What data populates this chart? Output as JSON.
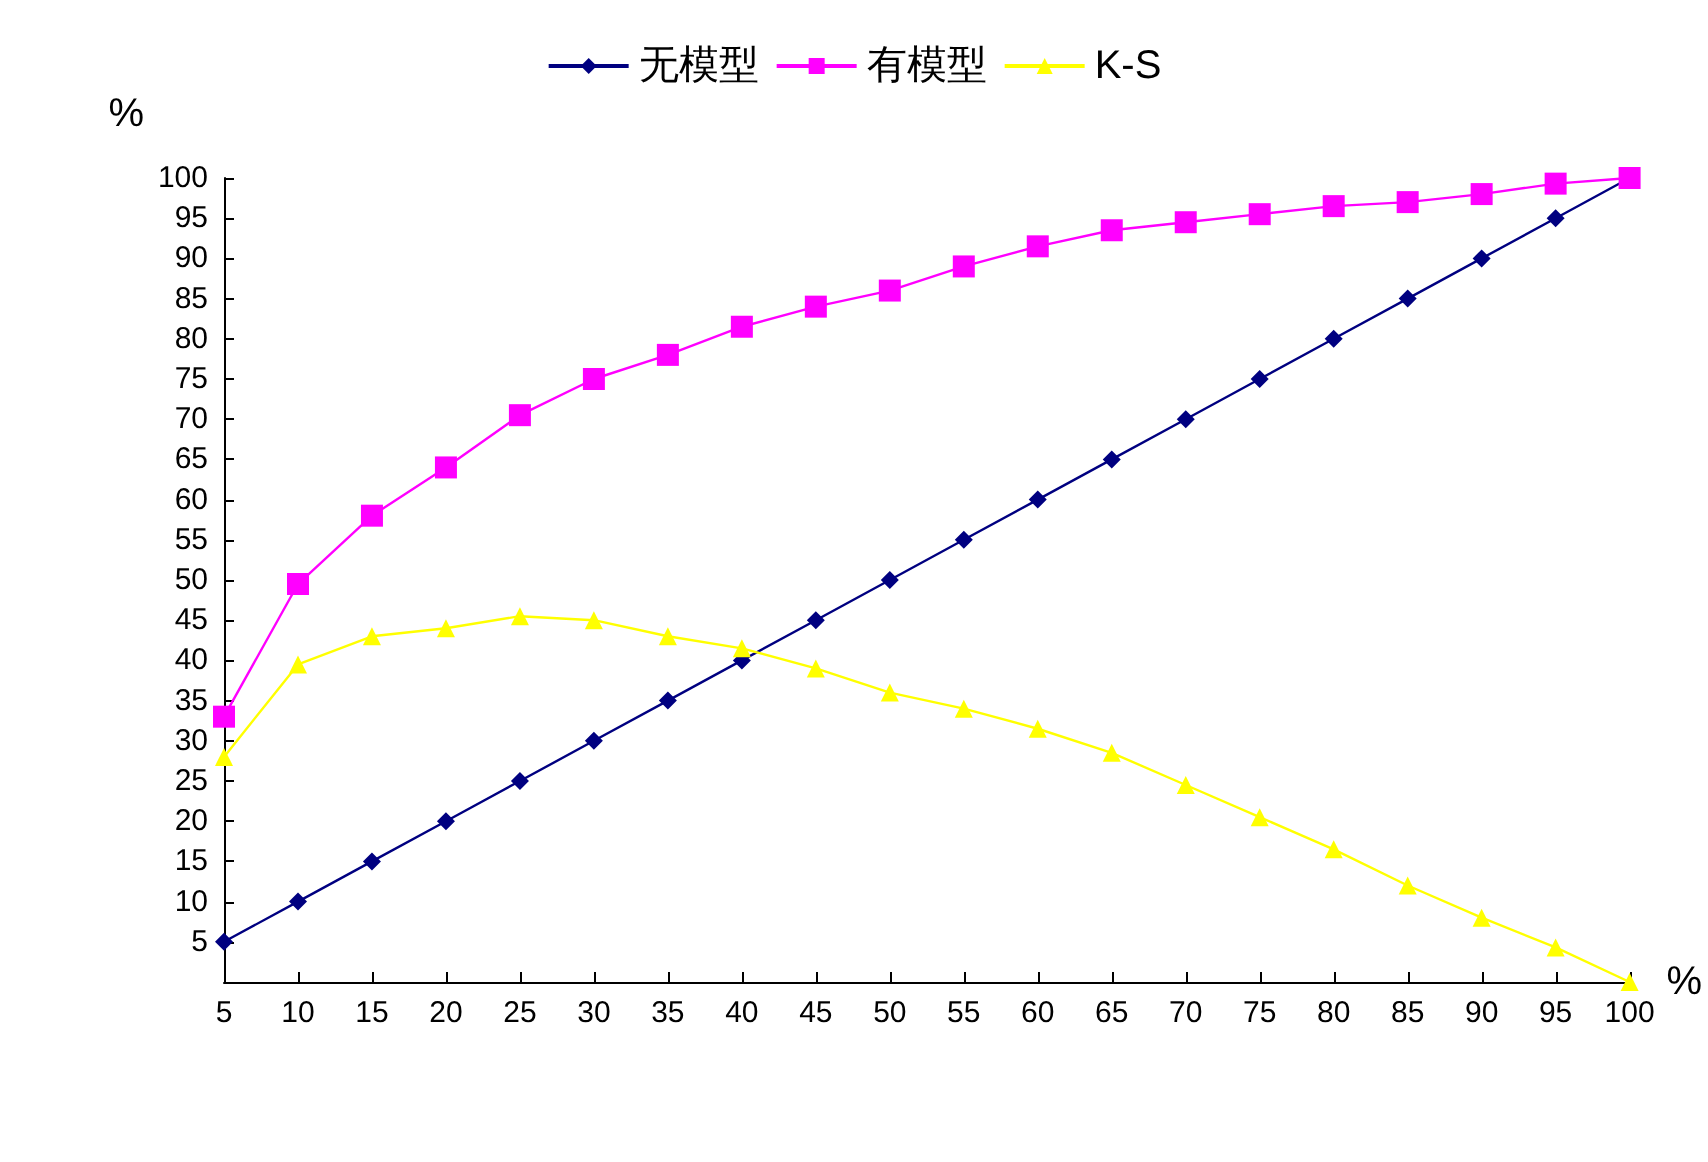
{
  "chart_data": {
    "type": "line",
    "xlabel": "%",
    "ylabel": "%",
    "categories": [
      "5",
      "10",
      "15",
      "20",
      "25",
      "30",
      "35",
      "40",
      "45",
      "50",
      "55",
      "60",
      "65",
      "70",
      "75",
      "80",
      "85",
      "90",
      "95",
      "100"
    ],
    "series": [
      {
        "name": "无模型",
        "color": "#000080",
        "marker": "diamond",
        "values": [
          5,
          10,
          15,
          20,
          25,
          30,
          35,
          40,
          45,
          50,
          55,
          60,
          65,
          70,
          75,
          80,
          85,
          90,
          95,
          100
        ]
      },
      {
        "name": "有模型",
        "color": "#ff00ff",
        "marker": "square",
        "values": [
          33,
          49.5,
          58,
          64,
          70.5,
          75,
          78,
          81.5,
          84,
          86,
          89,
          91.5,
          93.5,
          94.5,
          95.5,
          96.5,
          97,
          98,
          99.3,
          100
        ]
      },
      {
        "name": "K-S",
        "color": "#ffff00",
        "marker": "triangle",
        "values": [
          28,
          39.5,
          43,
          44,
          45.5,
          45,
          43,
          41.5,
          39,
          36,
          34,
          31.5,
          28.5,
          24.5,
          20.5,
          16.5,
          12,
          8,
          4.3,
          0
        ]
      }
    ],
    "ylim": [
      0,
      100
    ],
    "yticks": [
      5,
      10,
      15,
      20,
      25,
      30,
      35,
      40,
      45,
      50,
      55,
      60,
      65,
      70,
      75,
      80,
      85,
      90,
      95,
      100
    ],
    "grid": false,
    "legend": "top",
    "line_style": "solid"
  }
}
